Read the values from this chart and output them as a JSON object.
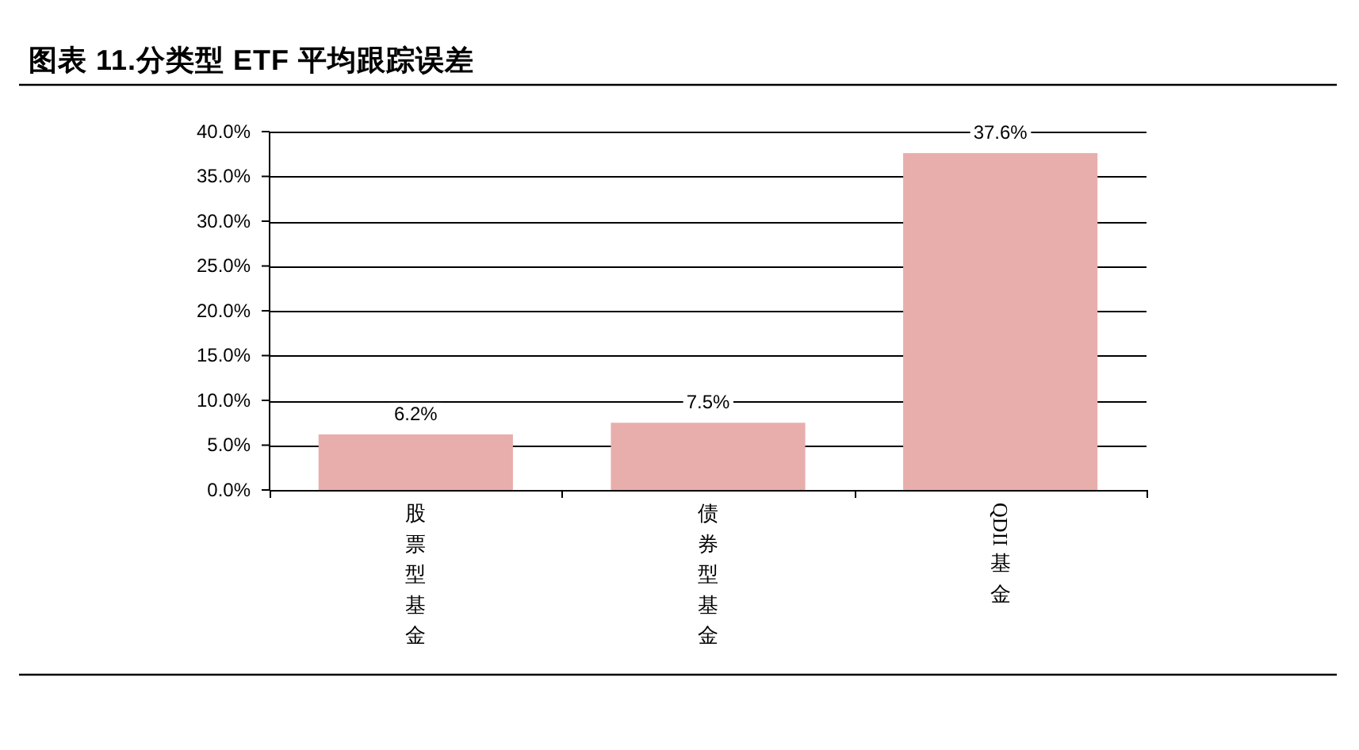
{
  "chart_data": {
    "type": "bar",
    "title": "图表 11.分类型 ETF 平均跟踪误差",
    "categories": [
      "股票型基金",
      "债券型基金",
      "QDII基金"
    ],
    "values": [
      6.2,
      7.5,
      37.6
    ],
    "color": "#e8aeac",
    "value_labels": [
      "6.2%",
      "7.5%",
      "37.6%"
    ],
    "ylim": [
      0,
      40
    ],
    "yticks": [
      {
        "value": 0,
        "label": "0.0%"
      },
      {
        "value": 5,
        "label": "5.0%"
      },
      {
        "value": 10,
        "label": "10.0%"
      },
      {
        "value": 15,
        "label": "15.0%"
      },
      {
        "value": 20,
        "label": "20.0%"
      },
      {
        "value": 25,
        "label": "25.0%"
      },
      {
        "value": 30,
        "label": "30.0%"
      },
      {
        "value": 35,
        "label": "35.0%"
      },
      {
        "value": 40,
        "label": "40.0%"
      }
    ],
    "grid": "y"
  }
}
